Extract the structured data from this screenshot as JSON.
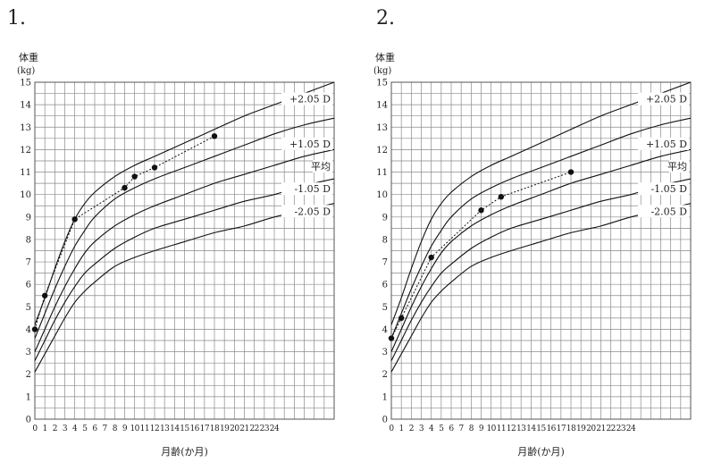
{
  "panels": [
    {
      "number": "1."
    },
    {
      "number": "2."
    }
  ],
  "chart_data": [
    {
      "type": "line",
      "ylabel": [
        "体重",
        "(kg)"
      ],
      "xlabel": "月齢(か月)",
      "xlim": [
        0,
        30
      ],
      "ylim": [
        0,
        15
      ],
      "xticks": [
        0,
        1,
        2,
        3,
        4,
        5,
        6,
        7,
        8,
        9,
        10,
        11,
        12,
        13,
        14,
        15,
        16,
        17,
        18,
        19,
        20,
        21,
        22,
        23,
        24
      ],
      "yticks": [
        0,
        1,
        2,
        3,
        4,
        5,
        6,
        7,
        8,
        9,
        10,
        11,
        12,
        13,
        14,
        15
      ],
      "grid": true,
      "reference_curves": [
        {
          "label": "+2.05 D",
          "x": [
            0,
            1,
            2,
            3,
            4,
            5,
            6,
            8,
            10,
            12,
            15,
            18,
            21,
            24,
            27,
            30
          ],
          "y": [
            4.2,
            5.4,
            6.7,
            7.9,
            8.9,
            9.6,
            10.1,
            10.8,
            11.3,
            11.7,
            12.3,
            12.9,
            13.5,
            14.0,
            14.5,
            15.0
          ]
        },
        {
          "label": "+1.05 D",
          "x": [
            0,
            1,
            2,
            3,
            4,
            5,
            6,
            8,
            10,
            12,
            15,
            18,
            21,
            24,
            27,
            30
          ],
          "y": [
            3.6,
            4.7,
            5.8,
            6.8,
            7.7,
            8.4,
            9.0,
            9.8,
            10.3,
            10.7,
            11.2,
            11.7,
            12.2,
            12.7,
            13.1,
            13.4
          ]
        },
        {
          "label": "平均",
          "x": [
            0,
            1,
            2,
            3,
            4,
            5,
            6,
            8,
            10,
            12,
            15,
            18,
            21,
            24,
            27,
            30
          ],
          "y": [
            3.0,
            4.0,
            5.0,
            5.9,
            6.7,
            7.4,
            7.9,
            8.6,
            9.1,
            9.5,
            10.0,
            10.5,
            10.9,
            11.3,
            11.7,
            12.0
          ]
        },
        {
          "label": "-1.05 D",
          "x": [
            0,
            1,
            2,
            3,
            4,
            5,
            6,
            8,
            10,
            12,
            15,
            18,
            21,
            24,
            27,
            30
          ],
          "y": [
            2.6,
            3.5,
            4.4,
            5.2,
            5.9,
            6.5,
            6.9,
            7.6,
            8.1,
            8.5,
            8.9,
            9.3,
            9.7,
            10.0,
            10.4,
            10.7
          ]
        },
        {
          "label": "-2.05 D",
          "x": [
            0,
            1,
            2,
            3,
            4,
            5,
            6,
            8,
            10,
            12,
            15,
            18,
            21,
            24,
            27,
            30
          ],
          "y": [
            2.1,
            2.9,
            3.7,
            4.5,
            5.2,
            5.7,
            6.1,
            6.8,
            7.2,
            7.5,
            7.9,
            8.3,
            8.6,
            9.0,
            9.3,
            9.6
          ]
        }
      ],
      "series": [
        {
          "x": [
            0,
            1,
            4,
            9,
            10,
            12,
            18
          ],
          "y": [
            4.0,
            5.5,
            8.9,
            10.3,
            10.8,
            11.2,
            12.6
          ]
        }
      ]
    },
    {
      "type": "line",
      "ylabel": [
        "体重",
        "(kg)"
      ],
      "xlabel": "月齢(か月)",
      "xlim": [
        0,
        30
      ],
      "ylim": [
        0,
        15
      ],
      "xticks": [
        0,
        1,
        2,
        3,
        4,
        5,
        6,
        7,
        8,
        9,
        10,
        11,
        12,
        13,
        14,
        15,
        16,
        17,
        18,
        19,
        20,
        21,
        22,
        23,
        24
      ],
      "yticks": [
        0,
        1,
        2,
        3,
        4,
        5,
        6,
        7,
        8,
        9,
        10,
        11,
        12,
        13,
        14,
        15
      ],
      "grid": true,
      "reference_curves": [
        {
          "label": "+2.05 D",
          "x": [
            0,
            1,
            2,
            3,
            4,
            5,
            6,
            8,
            10,
            12,
            15,
            18,
            21,
            24,
            27,
            30
          ],
          "y": [
            4.2,
            5.4,
            6.7,
            7.9,
            8.9,
            9.6,
            10.1,
            10.8,
            11.3,
            11.7,
            12.3,
            12.9,
            13.5,
            14.0,
            14.5,
            15.0
          ]
        },
        {
          "label": "+1.05 D",
          "x": [
            0,
            1,
            2,
            3,
            4,
            5,
            6,
            8,
            10,
            12,
            15,
            18,
            21,
            24,
            27,
            30
          ],
          "y": [
            3.6,
            4.7,
            5.8,
            6.8,
            7.7,
            8.4,
            9.0,
            9.8,
            10.3,
            10.7,
            11.2,
            11.7,
            12.2,
            12.7,
            13.1,
            13.4
          ]
        },
        {
          "label": "平均",
          "x": [
            0,
            1,
            2,
            3,
            4,
            5,
            6,
            8,
            10,
            12,
            15,
            18,
            21,
            24,
            27,
            30
          ],
          "y": [
            3.0,
            4.0,
            5.0,
            5.9,
            6.7,
            7.4,
            7.9,
            8.6,
            9.1,
            9.5,
            10.0,
            10.5,
            10.9,
            11.3,
            11.7,
            12.0
          ]
        },
        {
          "label": "-1.05 D",
          "x": [
            0,
            1,
            2,
            3,
            4,
            5,
            6,
            8,
            10,
            12,
            15,
            18,
            21,
            24,
            27,
            30
          ],
          "y": [
            2.6,
            3.5,
            4.4,
            5.2,
            5.9,
            6.5,
            6.9,
            7.6,
            8.1,
            8.5,
            8.9,
            9.3,
            9.7,
            10.0,
            10.4,
            10.7
          ]
        },
        {
          "label": "-2.05 D",
          "x": [
            0,
            1,
            2,
            3,
            4,
            5,
            6,
            8,
            10,
            12,
            15,
            18,
            21,
            24,
            27,
            30
          ],
          "y": [
            2.1,
            2.9,
            3.7,
            4.5,
            5.2,
            5.7,
            6.1,
            6.8,
            7.2,
            7.5,
            7.9,
            8.3,
            8.6,
            9.0,
            9.3,
            9.6
          ]
        }
      ],
      "series": [
        {
          "x": [
            0,
            1,
            4,
            9,
            11,
            18
          ],
          "y": [
            3.6,
            4.5,
            7.2,
            9.3,
            9.9,
            11.0
          ]
        }
      ]
    }
  ]
}
